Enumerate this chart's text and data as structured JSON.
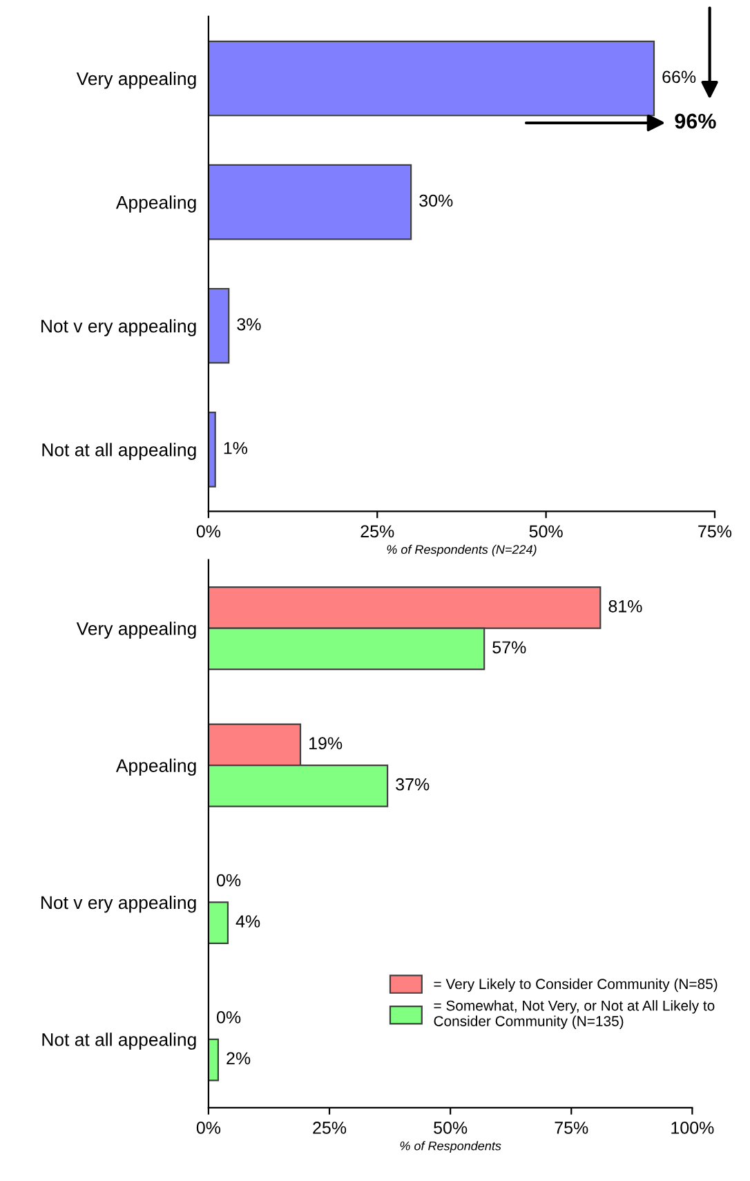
{
  "chart_data": [
    {
      "type": "bar",
      "orientation": "horizontal",
      "categories": [
        "Very appealing",
        "Appealing",
        "Not v ery appealing",
        "Not at all appealing"
      ],
      "xlabel": "% of Respondents (N=224)",
      "series": [
        {
          "color": "#8080ff",
          "values": [
            66,
            30,
            3,
            1
          ],
          "value_labels": [
            "66%",
            "30%",
            "3%",
            "1%"
          ]
        }
      ],
      "xlim": [
        0,
        75
      ],
      "xticks": [
        {
          "value": 0,
          "label": "0%"
        },
        {
          "value": 25,
          "label": "25%"
        },
        {
          "value": 50,
          "label": "50%"
        },
        {
          "value": 75,
          "label": "75%"
        }
      ],
      "annotations": [
        "96%"
      ],
      "grid": false,
      "legend": false
    },
    {
      "type": "bar",
      "orientation": "horizontal",
      "categories": [
        "Very appealing",
        "Appealing",
        "Not v ery appealing",
        "Not at all appealing"
      ],
      "xlabel": "% of Respondents",
      "series": [
        {
          "name": "= Very Likely to Consider Community (N=85)",
          "color": "#ff8080",
          "values": [
            81,
            19,
            0,
            0
          ],
          "value_labels": [
            "81%",
            "19%",
            "0%",
            "0%"
          ]
        },
        {
          "name": "= Somewhat, Not Very, or Not at All Likely to\nConsider Community (N=135)",
          "color": "#80ff80",
          "values": [
            57,
            37,
            4,
            2
          ],
          "value_labels": [
            "57%",
            "37%",
            "4%",
            "2%"
          ]
        }
      ],
      "xlim": [
        0,
        100
      ],
      "xticks": [
        {
          "value": 0,
          "label": "0%"
        },
        {
          "value": 25,
          "label": "25%"
        },
        {
          "value": 50,
          "label": "50%"
        },
        {
          "value": 75,
          "label": "75%"
        },
        {
          "value": 100,
          "label": "100%"
        }
      ],
      "grid": false,
      "legend": "lower right"
    }
  ]
}
